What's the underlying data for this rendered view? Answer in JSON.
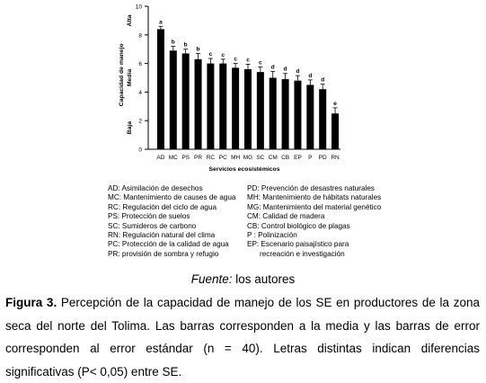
{
  "chart_data": {
    "type": "bar",
    "categories": [
      "AD",
      "MC",
      "PS",
      "PR",
      "RC",
      "PC",
      "MH",
      "MG",
      "SC",
      "CM",
      "CB",
      "EP",
      "P",
      "PD",
      "RN"
    ],
    "values": [
      8.4,
      6.9,
      6.7,
      6.3,
      6.0,
      6.0,
      5.7,
      5.6,
      5.4,
      5.0,
      4.9,
      4.8,
      4.5,
      4.2,
      2.5
    ],
    "errors": [
      0.2,
      0.3,
      0.3,
      0.4,
      0.35,
      0.3,
      0.3,
      0.35,
      0.35,
      0.45,
      0.4,
      0.35,
      0.35,
      0.35,
      0.4
    ],
    "significance_letters": [
      "a",
      "b",
      "b",
      "b",
      "c",
      "c",
      "c",
      "c",
      "c",
      "d",
      "d",
      "d",
      "d",
      "d",
      "e"
    ],
    "ylim": [
      0,
      10
    ],
    "yticks": [
      "0",
      "2",
      "4",
      "6",
      "8",
      "10"
    ],
    "ylabel": "Capacidad de manejo",
    "y_level_labels": [
      "Alta",
      "Media",
      "Baja"
    ],
    "xlabel": "Servicios ecosistémicos",
    "bar_color": "#000000"
  },
  "legend_left": [
    "AD: Asimilación de desechos",
    "MC: Mantenimiento de causes de agua",
    "RC: Regulación del ciclo de agua",
    "PS: Protección de suelos",
    "SC: Sumideros de carbono",
    "RN: Regulación natural del clima",
    "PC: Protección de la calidad de agua",
    "PR: provisión de sombra y refugio"
  ],
  "legend_right": [
    "PD: Prevención de desastres naturales",
    "MH: Mantenimiento de hábitats naturales",
    "MG: Mantenimiento del material genético",
    "CM: Calidad de madera",
    "CB: Control biológico de plagas",
    " P : Polinización",
    "EP: Escenario paisajístico para",
    "recreación e investigación"
  ],
  "source": {
    "label": "Fuente:",
    "text": " los autores"
  },
  "caption": {
    "label": "Figura 3.",
    "text": " Percepción de la capacidad de manejo de los SE en productores de la zona seca del norte del Tolima. Las barras corresponden a la media y las barras de error corresponden al error estándar (n = 40). Letras distintas indican diferencias significativas  (P< 0,05) entre SE."
  }
}
